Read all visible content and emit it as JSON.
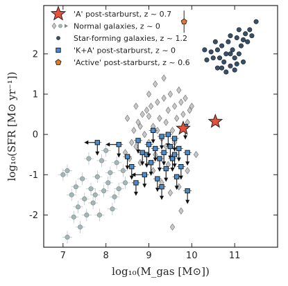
{
  "chart_data": {
    "type": "scatter",
    "xlabel": "log₁₀(M_gas [M⊙])",
    "ylabel": "log₁₀(SFR [M⊙ yr⁻¹])",
    "xlim": [
      6.55,
      12.0
    ],
    "ylim": [
      -2.8,
      3.2
    ],
    "xticks": [
      "7",
      "8",
      "9",
      "10",
      "11"
    ],
    "yticks": [
      "-2",
      "-1",
      "0",
      "1",
      "2"
    ],
    "legend_position": "top-left",
    "grid": false,
    "colors": {
      "a_star": "#e8503a",
      "normal": "#c8c8c8",
      "starforming": "#3a4e64",
      "ka": "#4d8cc8",
      "active": "#e07a30",
      "lowmass": "#a6b6b6"
    },
    "series": [
      {
        "name": "'A' post-starburst, z ~ 0.7",
        "marker": "star",
        "points": [
          [
            9.8,
            0.15
          ],
          [
            10.55,
            0.32
          ]
        ]
      },
      {
        "name": "Normal galaxies, z ~ 0",
        "marker": "diamond",
        "points": [
          [
            8.45,
            -0.45
          ],
          [
            8.55,
            -0.6
          ],
          [
            8.6,
            -0.2
          ],
          [
            8.65,
            0.1
          ],
          [
            8.7,
            -0.3
          ],
          [
            8.75,
            0.3
          ],
          [
            8.8,
            -0.7
          ],
          [
            8.85,
            0.5
          ],
          [
            8.9,
            0.0
          ],
          [
            8.95,
            0.6
          ],
          [
            9.0,
            -0.2
          ],
          [
            9.05,
            0.7
          ],
          [
            9.1,
            0.2
          ],
          [
            9.15,
            -0.5
          ],
          [
            9.2,
            0.8
          ],
          [
            9.25,
            0.4
          ],
          [
            9.3,
            -0.1
          ],
          [
            9.35,
            0.9
          ],
          [
            9.4,
            0.3
          ],
          [
            9.45,
            0.6
          ],
          [
            9.5,
            1.0
          ],
          [
            9.55,
            0.1
          ],
          [
            9.6,
            0.7
          ],
          [
            9.65,
            0.4
          ],
          [
            9.7,
            1.1
          ],
          [
            9.75,
            0.8
          ],
          [
            9.8,
            0.5
          ],
          [
            9.85,
            0.9
          ],
          [
            9.9,
            0.3
          ],
          [
            9.95,
            0.6
          ],
          [
            10.0,
            0.7
          ],
          [
            8.8,
            0.2
          ],
          [
            9.0,
            0.45
          ],
          [
            9.2,
            0.1
          ],
          [
            9.4,
            -0.3
          ],
          [
            9.6,
            -0.2
          ],
          [
            9.1,
            -0.9
          ],
          [
            9.3,
            -1.2
          ],
          [
            9.5,
            -1.45
          ],
          [
            9.7,
            -1.3
          ],
          [
            9.9,
            -0.9
          ],
          [
            10.1,
            -0.5
          ],
          [
            9.55,
            -2.3
          ],
          [
            9.75,
            -1.9
          ],
          [
            8.5,
            0.4
          ],
          [
            9.15,
            1.25
          ],
          [
            9.35,
            1.4
          ],
          [
            9.0,
            1.0
          ],
          [
            8.7,
            0.7
          ],
          [
            9.45,
            -0.75
          ]
        ]
      },
      {
        "name": "Star-forming galaxies, z ~ 1.2",
        "marker": "circle",
        "points": [
          [
            10.6,
            2.1
          ],
          [
            10.65,
            1.9
          ],
          [
            10.7,
            2.2
          ],
          [
            10.75,
            1.8
          ],
          [
            10.8,
            2.0
          ],
          [
            10.85,
            2.3
          ],
          [
            10.9,
            1.7
          ],
          [
            10.95,
            2.1
          ],
          [
            11.0,
            1.9
          ],
          [
            11.05,
            2.4
          ],
          [
            11.1,
            2.0
          ],
          [
            11.15,
            2.2
          ],
          [
            11.2,
            1.8
          ],
          [
            11.25,
            2.5
          ],
          [
            11.3,
            2.3
          ],
          [
            10.9,
            2.45
          ],
          [
            10.7,
            1.65
          ],
          [
            11.0,
            1.6
          ],
          [
            11.1,
            2.6
          ],
          [
            11.35,
            2.6
          ],
          [
            11.5,
            2.8
          ],
          [
            10.5,
            1.9
          ],
          [
            10.55,
            2.3
          ],
          [
            10.8,
            1.55
          ],
          [
            11.2,
            2.35
          ],
          [
            11.05,
            1.75
          ],
          [
            10.6,
            1.65
          ],
          [
            10.45,
            2.05
          ],
          [
            11.4,
            2.45
          ],
          [
            10.9,
            2.0
          ],
          [
            10.3,
            2.1
          ],
          [
            10.35,
            1.85
          ]
        ]
      },
      {
        "name": "'K+A' post-starburst, z ~ 0",
        "marker": "square",
        "points": [
          [
            7.8,
            -0.2
          ],
          [
            8.3,
            -0.25
          ],
          [
            8.5,
            -0.55
          ],
          [
            8.6,
            -0.8
          ],
          [
            8.75,
            -0.15
          ],
          [
            8.85,
            -0.45
          ],
          [
            8.9,
            -1.0
          ],
          [
            8.95,
            -0.5
          ],
          [
            9.0,
            -0.25
          ],
          [
            9.05,
            -0.7
          ],
          [
            9.1,
            0.1
          ],
          [
            9.15,
            -0.35
          ],
          [
            9.2,
            -1.1
          ],
          [
            9.25,
            -0.6
          ],
          [
            9.3,
            -0.05
          ],
          [
            9.35,
            -0.45
          ],
          [
            9.4,
            -0.85
          ],
          [
            9.45,
            0.0
          ],
          [
            9.5,
            -0.3
          ],
          [
            9.55,
            -0.6
          ],
          [
            9.6,
            -0.1
          ],
          [
            9.65,
            -1.05
          ],
          [
            9.7,
            -0.35
          ],
          [
            9.75,
            -0.8
          ],
          [
            9.6,
            -0.5
          ],
          [
            9.85,
            0.2
          ],
          [
            9.9,
            -0.45
          ],
          [
            8.7,
            -1.2
          ],
          [
            9.3,
            -1.3
          ],
          [
            9.9,
            -1.4
          ]
        ]
      },
      {
        "name": "'Active' post-starburst, z ~ 0.6",
        "marker": "pentagon",
        "points": [
          [
            9.82,
            2.8
          ]
        ]
      },
      {
        "marker": "circle",
        "points": [
          [
            7.1,
            -0.9
          ],
          [
            7.2,
            -1.5
          ],
          [
            7.3,
            -1.3
          ],
          [
            7.35,
            -1.8
          ],
          [
            7.45,
            -1.1
          ],
          [
            7.5,
            -1.6
          ],
          [
            7.6,
            -0.6
          ],
          [
            7.65,
            -1.35
          ],
          [
            7.75,
            -1.5
          ],
          [
            7.8,
            -1.05
          ],
          [
            7.9,
            -0.65
          ],
          [
            7.95,
            -1.4
          ],
          [
            8.05,
            -1.2
          ],
          [
            8.1,
            -0.95
          ],
          [
            8.2,
            -1.55
          ],
          [
            8.25,
            -0.7
          ],
          [
            8.3,
            -1.35
          ],
          [
            8.4,
            -0.9
          ],
          [
            8.45,
            -1.2
          ],
          [
            7.55,
            -2.0
          ],
          [
            7.4,
            -2.3
          ],
          [
            7.1,
            -2.55
          ],
          [
            7.25,
            -2.05
          ],
          [
            8.0,
            -0.4
          ],
          [
            8.15,
            -1.85
          ],
          [
            7.7,
            -1.7
          ],
          [
            7.0,
            -1.0
          ],
          [
            7.85,
            -2.0
          ]
        ]
      }
    ]
  }
}
